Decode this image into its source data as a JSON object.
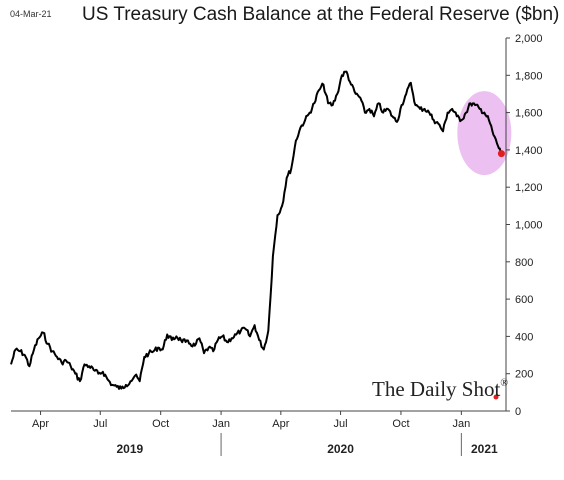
{
  "date_label": "04-Mar-21",
  "title": "US Treasury Cash Balance at the Federal Reserve ($bn)",
  "watermark": "The Daily Shot",
  "watermark_mark": "®",
  "colors": {
    "line": "#000000",
    "highlight": "#e9b6f0",
    "endpoint": "#e02020"
  },
  "chart_data": {
    "type": "line",
    "title": "US Treasury Cash Balance at the Federal Reserve ($bn)",
    "xlabel": "",
    "ylabel": "",
    "ylim": [
      0,
      2000
    ],
    "y_ticks": [
      0,
      200,
      400,
      600,
      800,
      1000,
      1200,
      1400,
      1600,
      1800,
      2000
    ],
    "y_tick_labels": [
      "0",
      "200",
      "400",
      "600",
      "800",
      "1,000",
      "1,200",
      "1,400",
      "1,600",
      "1,800",
      "2,000"
    ],
    "x_range": [
      "2019-02-15",
      "2021-03-10"
    ],
    "x_ticks": [
      {
        "label": "Apr",
        "date": "2019-04-01"
      },
      {
        "label": "Jul",
        "date": "2019-07-01"
      },
      {
        "label": "Oct",
        "date": "2019-10-01"
      },
      {
        "label": "Jan",
        "date": "2020-01-01"
      },
      {
        "label": "Apr",
        "date": "2020-04-01"
      },
      {
        "label": "Jul",
        "date": "2020-07-01"
      },
      {
        "label": "Oct",
        "date": "2020-10-01"
      },
      {
        "label": "Jan",
        "date": "2021-01-01"
      }
    ],
    "year_labels": [
      {
        "label": "2019",
        "date": "2019-08-15"
      },
      {
        "label": "2020",
        "date": "2020-07-01"
      },
      {
        "label": "2021",
        "date": "2021-02-05"
      }
    ],
    "year_separators": [
      "2020-01-01",
      "2021-01-01"
    ],
    "grid": false,
    "series": [
      {
        "x": [
          "2019-02-15",
          "2019-02-22",
          "2019-03-01",
          "2019-03-08",
          "2019-03-15",
          "2019-03-22",
          "2019-03-29",
          "2019-04-05",
          "2019-04-12",
          "2019-04-19",
          "2019-04-26",
          "2019-05-03",
          "2019-05-10",
          "2019-05-17",
          "2019-05-24",
          "2019-05-31",
          "2019-06-07",
          "2019-06-14",
          "2019-06-21",
          "2019-06-28",
          "2019-07-05",
          "2019-07-12",
          "2019-07-19",
          "2019-07-26",
          "2019-08-02",
          "2019-08-09",
          "2019-08-16",
          "2019-08-23",
          "2019-08-30",
          "2019-09-06",
          "2019-09-13",
          "2019-09-20",
          "2019-09-27",
          "2019-10-04",
          "2019-10-11",
          "2019-10-18",
          "2019-10-25",
          "2019-11-01",
          "2019-11-08",
          "2019-11-15",
          "2019-11-22",
          "2019-11-29",
          "2019-12-06",
          "2019-12-13",
          "2019-12-20",
          "2019-12-27",
          "2020-01-03",
          "2020-01-10",
          "2020-01-17",
          "2020-01-24",
          "2020-01-31",
          "2020-02-07",
          "2020-02-14",
          "2020-02-21",
          "2020-02-28",
          "2020-03-06",
          "2020-03-13",
          "2020-03-20",
          "2020-03-27",
          "2020-04-03",
          "2020-04-10",
          "2020-04-17",
          "2020-04-24",
          "2020-05-01",
          "2020-05-08",
          "2020-05-15",
          "2020-05-22",
          "2020-05-29",
          "2020-06-05",
          "2020-06-12",
          "2020-06-19",
          "2020-06-26",
          "2020-07-03",
          "2020-07-10",
          "2020-07-17",
          "2020-07-24",
          "2020-07-31",
          "2020-08-07",
          "2020-08-14",
          "2020-08-21",
          "2020-08-28",
          "2020-09-04",
          "2020-09-11",
          "2020-09-18",
          "2020-09-25",
          "2020-10-02",
          "2020-10-09",
          "2020-10-16",
          "2020-10-23",
          "2020-10-30",
          "2020-11-06",
          "2020-11-13",
          "2020-11-20",
          "2020-11-27",
          "2020-12-04",
          "2020-12-11",
          "2020-12-18",
          "2020-12-25",
          "2021-01-01",
          "2021-01-08",
          "2021-01-15",
          "2021-01-22",
          "2021-01-29",
          "2021-02-05",
          "2021-02-12",
          "2021-02-19",
          "2021-02-26",
          "2021-03-03"
        ],
        "values": [
          250,
          330,
          320,
          300,
          240,
          330,
          390,
          420,
          360,
          320,
          290,
          260,
          270,
          240,
          200,
          160,
          250,
          240,
          220,
          200,
          210,
          170,
          140,
          130,
          120,
          140,
          160,
          190,
          160,
          290,
          310,
          320,
          340,
          330,
          410,
          380,
          400,
          380,
          370,
          360,
          350,
          390,
          310,
          340,
          320,
          380,
          400,
          370,
          390,
          410,
          430,
          440,
          400,
          460,
          380,
          330,
          430,
          830,
          1050,
          1100,
          1250,
          1300,
          1450,
          1520,
          1560,
          1600,
          1650,
          1720,
          1750,
          1650,
          1640,
          1700,
          1800,
          1820,
          1750,
          1700,
          1680,
          1600,
          1620,
          1580,
          1650,
          1600,
          1620,
          1580,
          1550,
          1640,
          1700,
          1760,
          1640,
          1620,
          1620,
          1600,
          1560,
          1540,
          1500,
          1600,
          1620,
          1580,
          1560,
          1600,
          1650,
          1640,
          1620,
          1600,
          1560,
          1480,
          1420,
          1380
        ]
      }
    ],
    "annotations": [
      {
        "type": "highlight-ellipse",
        "around_date": "2021-02-05",
        "around_value": 1490
      },
      {
        "type": "end-point",
        "date": "2021-03-03",
        "value": 1380
      }
    ]
  }
}
